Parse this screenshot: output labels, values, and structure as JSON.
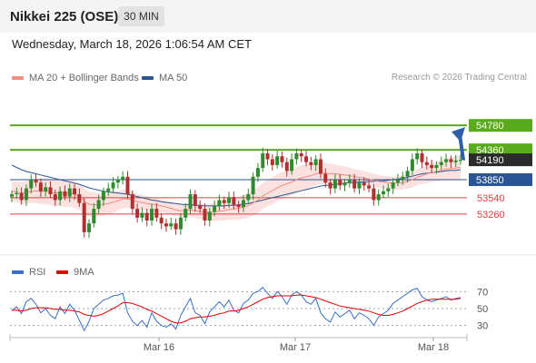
{
  "header": {
    "title": "Nikkei 225 (OSE)",
    "timeframe": "30 MIN"
  },
  "timestamp": "Wednesday, March 18, 2026 1:06:54 AM CET",
  "legend_top": [
    {
      "label": "MA 20 + Bollinger Bands",
      "color": "#f28b82"
    },
    {
      "label": "MA 50",
      "color": "#2a5595"
    }
  ],
  "credit": "Research © 2026 Trading Central",
  "legend_bottom": [
    {
      "label": "RSI",
      "color": "#3a6fc4"
    },
    {
      "label": "9MA",
      "color": "#e00000"
    }
  ],
  "colors": {
    "up": "#2e8b2e",
    "down": "#b03030",
    "target": "#5aaa1e",
    "pivot": "#2a5595",
    "support": "#d94040",
    "arrow": "#2f5fa8"
  },
  "chart_data": [
    {
      "type": "candlestick",
      "x_ticks": [
        "Mar 16",
        "Mar 17",
        "Mar 18"
      ],
      "y_range": [
        52450,
        55420
      ],
      "last_price": 54190,
      "levels": [
        {
          "value": 54780,
          "label": "54780",
          "kind": "target"
        },
        {
          "value": 54360,
          "label": "54360",
          "kind": "target"
        },
        {
          "value": 53850,
          "label": "53850",
          "kind": "pivot"
        },
        {
          "value": 53540,
          "label": "53540",
          "kind": "support"
        },
        {
          "value": 53260,
          "label": "53260",
          "kind": "support"
        }
      ],
      "close": [
        53600,
        53620,
        53500,
        53700,
        53850,
        53800,
        53650,
        53720,
        53600,
        53500,
        53650,
        53560,
        53700,
        53600,
        53450,
        52950,
        53100,
        53350,
        53500,
        53650,
        53700,
        53800,
        53850,
        53900,
        53600,
        53350,
        53200,
        53280,
        53150,
        53350,
        53200,
        53100,
        53050,
        53100,
        53000,
        53200,
        53350,
        53600,
        53400,
        53350,
        53150,
        53300,
        53400,
        53500,
        53450,
        53550,
        53420,
        53380,
        53500,
        53600,
        53900,
        54050,
        54300,
        54200,
        54100,
        54250,
        54150,
        54000,
        54200,
        54300,
        54250,
        54150,
        54100,
        54200,
        53950,
        53800,
        53700,
        53850,
        53750,
        53800,
        53850,
        53700,
        53800,
        53750,
        53700,
        53500,
        53600,
        53650,
        53700,
        53800,
        53850,
        53900,
        54000,
        54200,
        54300,
        54150,
        54100,
        54050,
        54100,
        54150,
        54200,
        54150,
        54180,
        54190
      ],
      "ma20": [
        53650,
        53640,
        53620,
        53630,
        53650,
        53660,
        53650,
        53650,
        53640,
        53620,
        53630,
        53610,
        53620,
        53600,
        53560,
        53480,
        53430,
        53420,
        53420,
        53430,
        53440,
        53460,
        53490,
        53520,
        53520,
        53500,
        53470,
        53460,
        53440,
        53430,
        53420,
        53400,
        53380,
        53360,
        53330,
        53320,
        53320,
        53330,
        53320,
        53310,
        53290,
        53290,
        53300,
        53310,
        53320,
        53340,
        53350,
        53360,
        53380,
        53410,
        53450,
        53500,
        53570,
        53620,
        53660,
        53710,
        53750,
        53780,
        53810,
        53850,
        53880,
        53900,
        53920,
        53950,
        53960,
        53960,
        53950,
        53950,
        53940,
        53930,
        53920,
        53900,
        53890,
        53880,
        53860,
        53840,
        53820,
        53810,
        53800,
        53790,
        53790,
        53800,
        53820,
        53850,
        53890,
        53920,
        53950,
        53970,
        53990,
        54010,
        54030,
        54040,
        54050,
        54060
      ],
      "ma50": [
        54100,
        54060,
        54020,
        53990,
        53970,
        53950,
        53930,
        53910,
        53890,
        53870,
        53850,
        53830,
        53810,
        53790,
        53770,
        53740,
        53710,
        53690,
        53670,
        53650,
        53640,
        53630,
        53620,
        53610,
        53600,
        53580,
        53560,
        53540,
        53520,
        53500,
        53490,
        53470,
        53460,
        53450,
        53440,
        53430,
        53420,
        53420,
        53410,
        53410,
        53400,
        53400,
        53400,
        53400,
        53400,
        53410,
        53410,
        53420,
        53430,
        53440,
        53460,
        53480,
        53500,
        53520,
        53540,
        53560,
        53580,
        53600,
        53620,
        53640,
        53660,
        53680,
        53700,
        53720,
        53740,
        53750,
        53760,
        53770,
        53780,
        53790,
        53800,
        53800,
        53810,
        53810,
        53820,
        53820,
        53830,
        53830,
        53840,
        53850,
        53860,
        53870,
        53890,
        53910,
        53930,
        53950,
        53960,
        53970,
        53980,
        53990,
        54000,
        54010,
        54010,
        54020
      ],
      "rsi": [
        48,
        52,
        44,
        58,
        62,
        55,
        45,
        50,
        42,
        38,
        52,
        44,
        55,
        48,
        36,
        24,
        35,
        50,
        55,
        60,
        62,
        65,
        66,
        68,
        45,
        35,
        30,
        36,
        28,
        45,
        35,
        30,
        28,
        32,
        26,
        42,
        52,
        62,
        45,
        42,
        32,
        46,
        52,
        58,
        52,
        60,
        48,
        45,
        56,
        60,
        68,
        70,
        75,
        68,
        62,
        70,
        64,
        55,
        66,
        70,
        66,
        58,
        55,
        62,
        45,
        38,
        34,
        46,
        40,
        44,
        48,
        38,
        45,
        42,
        38,
        30,
        40,
        44,
        48,
        56,
        60,
        64,
        68,
        72,
        74,
        64,
        60,
        58,
        60,
        62,
        64,
        60,
        62,
        63
      ],
      "rsi_ma": [
        48,
        48,
        47,
        48,
        50,
        51,
        51,
        51,
        50,
        49,
        49,
        48,
        48,
        47,
        46,
        43,
        42,
        41,
        42,
        44,
        47,
        50,
        53,
        57,
        57,
        56,
        54,
        52,
        49,
        47,
        44,
        41,
        38,
        35,
        33,
        33,
        35,
        38,
        39,
        40,
        40,
        41,
        42,
        44,
        45,
        47,
        47,
        48,
        50,
        52,
        55,
        58,
        61,
        63,
        64,
        65,
        65,
        65,
        65,
        66,
        66,
        65,
        64,
        63,
        61,
        59,
        57,
        55,
        53,
        52,
        51,
        50,
        49,
        48,
        47,
        45,
        43,
        42,
        42,
        43,
        45,
        47,
        50,
        53,
        56,
        58,
        60,
        61,
        61,
        61,
        61,
        61,
        61,
        62
      ],
      "rsi_ticks": [
        70,
        50,
        30
      ],
      "subchart_legend": [
        "RSI",
        "9MA"
      ]
    }
  ]
}
